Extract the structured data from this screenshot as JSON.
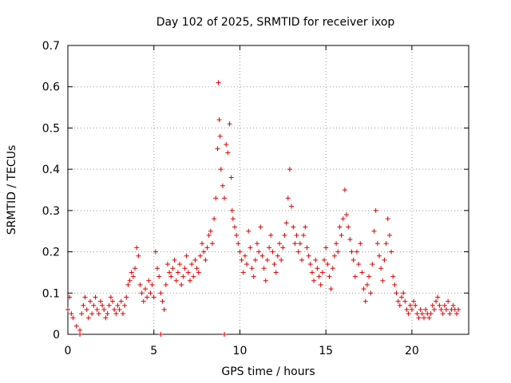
{
  "chart_data": {
    "type": "scatter",
    "title": "Day 102 of 2025, SRMTID for receiver ixop",
    "xlabel": "GPS time / hours",
    "ylabel": "SRMTID / TECUs",
    "xlim": [
      0,
      23.3
    ],
    "ylim": [
      0,
      0.7
    ],
    "xticks": [
      0,
      5,
      10,
      15,
      20
    ],
    "xtick_labels": [
      "0",
      "5",
      "10",
      "15",
      "20"
    ],
    "yticks": [
      0,
      0.1,
      0.2,
      0.3,
      0.4,
      0.5,
      0.6,
      0.7
    ],
    "ytick_labels": [
      "0",
      "0.1",
      "0.2",
      "0.3",
      "0.4",
      "0.5",
      "0.6",
      "0.7"
    ],
    "grid": true,
    "marker": "+",
    "color": "#e00000",
    "series": [
      {
        "name": "SRMTID",
        "x": [
          0.0,
          0.1,
          0.2,
          0.3,
          0.5,
          0.7,
          0.8,
          0.9,
          1.0,
          1.1,
          1.2,
          1.3,
          1.4,
          1.5,
          1.6,
          1.7,
          1.8,
          1.9,
          2.0,
          2.1,
          2.2,
          2.3,
          2.4,
          2.5,
          2.6,
          2.7,
          2.8,
          2.9,
          3.0,
          3.1,
          3.2,
          3.3,
          3.4,
          3.5,
          3.6,
          3.7,
          3.8,
          3.9,
          4.0,
          4.1,
          4.2,
          4.3,
          4.4,
          4.5,
          4.6,
          4.7,
          4.8,
          4.9,
          5.0,
          5.1,
          5.2,
          5.3,
          5.4,
          5.5,
          5.6,
          5.7,
          5.8,
          5.9,
          6.0,
          6.1,
          6.2,
          6.3,
          6.4,
          6.5,
          6.6,
          6.7,
          6.8,
          6.9,
          7.0,
          7.1,
          7.2,
          7.3,
          7.4,
          7.5,
          7.6,
          7.7,
          7.8,
          7.9,
          8.0,
          8.1,
          8.2,
          8.3,
          8.4,
          8.5,
          8.6,
          8.7,
          8.75,
          8.8,
          8.85,
          8.9,
          9.0,
          9.1,
          9.2,
          9.3,
          9.4,
          9.5,
          9.55,
          9.6,
          9.7,
          9.8,
          9.9,
          10.0,
          10.1,
          10.2,
          10.3,
          10.4,
          10.5,
          10.6,
          10.7,
          10.8,
          10.9,
          11.0,
          11.1,
          11.2,
          11.3,
          11.4,
          11.5,
          11.6,
          11.7,
          11.8,
          11.9,
          12.0,
          12.1,
          12.2,
          12.3,
          12.4,
          12.5,
          12.6,
          12.7,
          12.8,
          12.9,
          13.0,
          13.1,
          13.2,
          13.3,
          13.4,
          13.5,
          13.6,
          13.7,
          13.8,
          13.9,
          14.0,
          14.1,
          14.2,
          14.3,
          14.4,
          14.5,
          14.6,
          14.7,
          14.8,
          14.9,
          15.0,
          15.1,
          15.2,
          15.3,
          15.4,
          15.5,
          15.6,
          15.7,
          15.8,
          15.9,
          16.0,
          16.1,
          16.2,
          16.3,
          16.4,
          16.5,
          16.6,
          16.7,
          16.8,
          16.9,
          17.0,
          17.1,
          17.2,
          17.3,
          17.4,
          17.5,
          17.6,
          17.7,
          17.8,
          17.9,
          18.0,
          18.1,
          18.2,
          18.3,
          18.4,
          18.5,
          18.6,
          18.7,
          18.8,
          18.9,
          19.0,
          19.1,
          19.2,
          19.3,
          19.4,
          19.5,
          19.6,
          19.7,
          19.8,
          19.9,
          20.0,
          20.1,
          20.2,
          20.3,
          20.4,
          20.5,
          20.6,
          20.7,
          20.8,
          20.9,
          21.0,
          21.1,
          21.2,
          21.3,
          21.4,
          21.5,
          21.6,
          21.7,
          21.8,
          21.9,
          22.0,
          22.1,
          22.2,
          22.3,
          22.4,
          22.5,
          22.6,
          22.7,
          5.4,
          9.1,
          0.7
        ],
        "y": [
          0.06,
          0.09,
          0.05,
          0.04,
          0.02,
          0.01,
          0.05,
          0.07,
          0.09,
          0.06,
          0.04,
          0.08,
          0.05,
          0.07,
          0.09,
          0.06,
          0.05,
          0.08,
          0.07,
          0.06,
          0.04,
          0.05,
          0.07,
          0.09,
          0.08,
          0.06,
          0.05,
          0.07,
          0.06,
          0.08,
          0.05,
          0.07,
          0.09,
          0.12,
          0.13,
          0.15,
          0.14,
          0.16,
          0.21,
          0.19,
          0.12,
          0.1,
          0.08,
          0.11,
          0.09,
          0.13,
          0.1,
          0.12,
          0.09,
          0.2,
          0.16,
          0.14,
          0.1,
          0.08,
          0.06,
          0.12,
          0.17,
          0.15,
          0.14,
          0.16,
          0.18,
          0.13,
          0.15,
          0.17,
          0.12,
          0.14,
          0.16,
          0.19,
          0.15,
          0.13,
          0.17,
          0.14,
          0.18,
          0.16,
          0.15,
          0.19,
          0.22,
          0.2,
          0.18,
          0.21,
          0.24,
          0.25,
          0.22,
          0.28,
          0.33,
          0.45,
          0.61,
          0.52,
          0.48,
          0.4,
          0.36,
          0.33,
          0.46,
          0.44,
          0.51,
          0.38,
          0.3,
          0.28,
          0.26,
          0.24,
          0.22,
          0.2,
          0.18,
          0.15,
          0.19,
          0.17,
          0.25,
          0.21,
          0.16,
          0.14,
          0.18,
          0.22,
          0.2,
          0.26,
          0.19,
          0.16,
          0.13,
          0.18,
          0.21,
          0.24,
          0.2,
          0.17,
          0.15,
          0.19,
          0.22,
          0.18,
          0.21,
          0.24,
          0.27,
          0.33,
          0.4,
          0.31,
          0.26,
          0.22,
          0.24,
          0.2,
          0.22,
          0.18,
          0.24,
          0.26,
          0.21,
          0.19,
          0.17,
          0.15,
          0.13,
          0.18,
          0.16,
          0.14,
          0.12,
          0.15,
          0.18,
          0.21,
          0.17,
          0.14,
          0.11,
          0.16,
          0.19,
          0.22,
          0.2,
          0.26,
          0.24,
          0.28,
          0.35,
          0.29,
          0.26,
          0.23,
          0.2,
          0.18,
          0.14,
          0.2,
          0.17,
          0.22,
          0.15,
          0.11,
          0.08,
          0.12,
          0.14,
          0.1,
          0.17,
          0.25,
          0.3,
          0.22,
          0.19,
          0.16,
          0.13,
          0.18,
          0.22,
          0.28,
          0.24,
          0.2,
          0.14,
          0.12,
          0.1,
          0.08,
          0.07,
          0.09,
          0.1,
          0.08,
          0.06,
          0.05,
          0.07,
          0.06,
          0.08,
          0.07,
          0.05,
          0.04,
          0.06,
          0.05,
          0.04,
          0.06,
          0.05,
          0.04,
          0.05,
          0.07,
          0.06,
          0.08,
          0.09,
          0.07,
          0.06,
          0.05,
          0.07,
          0.06,
          0.08,
          0.05,
          0.06,
          0.07,
          0.06,
          0.05,
          0.06,
          0.0,
          0.0,
          0.0
        ]
      }
    ]
  }
}
